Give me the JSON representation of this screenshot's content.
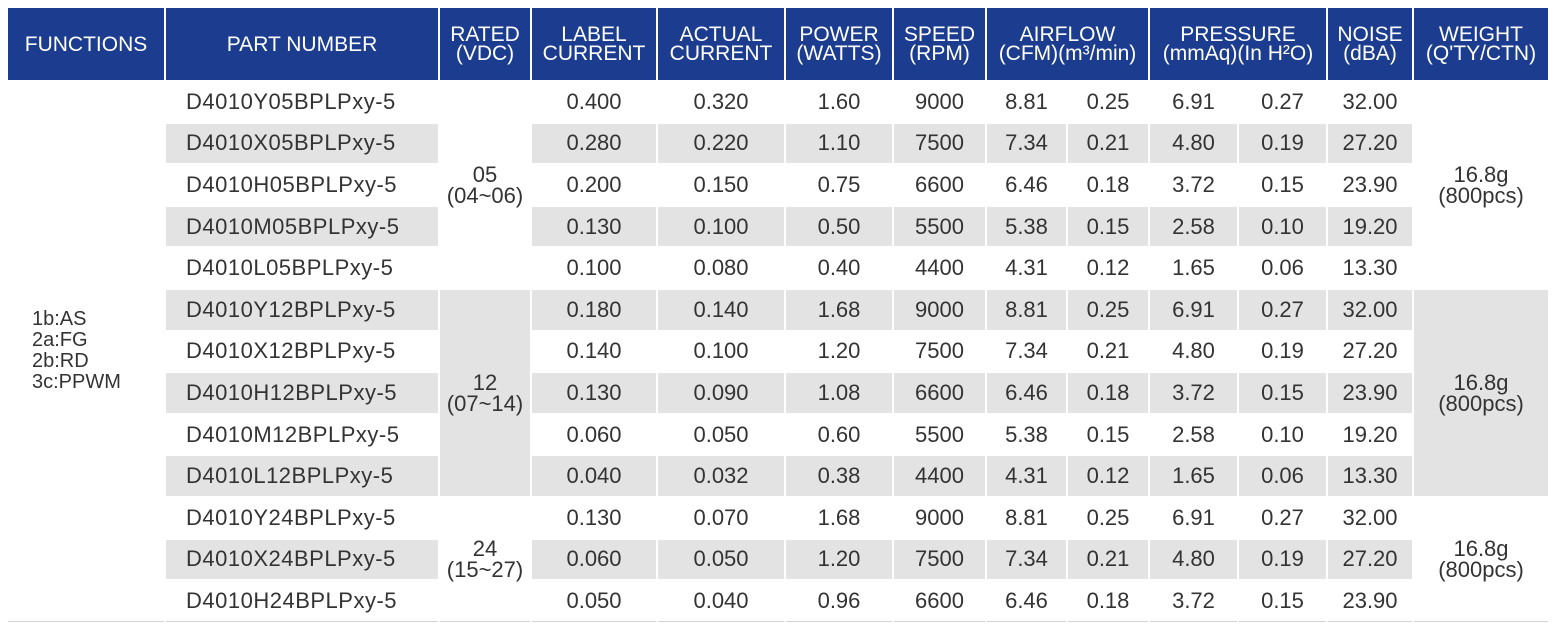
{
  "headers": {
    "functions": "FUNCTIONS",
    "part_number": "PART NUMBER",
    "rated": [
      "RATED",
      "(VDC)"
    ],
    "label_current": [
      "LABEL",
      "CURRENT"
    ],
    "actual_current": [
      "ACTUAL",
      "CURRENT"
    ],
    "power": [
      "POWER",
      "(WATTS)"
    ],
    "speed": [
      "SPEED",
      "(RPM)"
    ],
    "airflow": [
      "AIRFLOW",
      "(CFM)(m³/min)"
    ],
    "pressure": [
      "PRESSURE",
      "(mmAq)(In H²O)"
    ],
    "noise": [
      "NOISE",
      "(dBA)"
    ],
    "weight": [
      "WEIGHT",
      "(Q'TY/CTN)"
    ]
  },
  "functions": [
    "1b:AS",
    "2a:FG",
    "2b:RD",
    "3c:PPWM"
  ],
  "groups": [
    {
      "voltage": "05",
      "range": "(04~06)",
      "weight": "16.8g",
      "qty": "(800pcs)",
      "rows": [
        {
          "part": "D4010Y05BPLPxy-5",
          "label_current": "0.400",
          "actual_current": "0.320",
          "power": "1.60",
          "speed": "9000",
          "cfm": "8.81",
          "m3min": "0.25",
          "mmaq": "6.91",
          "inh2o": "0.27",
          "noise": "32.00"
        },
        {
          "part": "D4010X05BPLPxy-5",
          "label_current": "0.280",
          "actual_current": "0.220",
          "power": "1.10",
          "speed": "7500",
          "cfm": "7.34",
          "m3min": "0.21",
          "mmaq": "4.80",
          "inh2o": "0.19",
          "noise": "27.20"
        },
        {
          "part": "D4010H05BPLPxy-5",
          "label_current": "0.200",
          "actual_current": "0.150",
          "power": "0.75",
          "speed": "6600",
          "cfm": "6.46",
          "m3min": "0.18",
          "mmaq": "3.72",
          "inh2o": "0.15",
          "noise": "23.90"
        },
        {
          "part": "D4010M05BPLPxy-5",
          "label_current": "0.130",
          "actual_current": "0.100",
          "power": "0.50",
          "speed": "5500",
          "cfm": "5.38",
          "m3min": "0.15",
          "mmaq": "2.58",
          "inh2o": "0.10",
          "noise": "19.20"
        },
        {
          "part": "D4010L05BPLPxy-5",
          "label_current": "0.100",
          "actual_current": "0.080",
          "power": "0.40",
          "speed": "4400",
          "cfm": "4.31",
          "m3min": "0.12",
          "mmaq": "1.65",
          "inh2o": "0.06",
          "noise": "13.30"
        }
      ]
    },
    {
      "voltage": "12",
      "range": "(07~14)",
      "weight": "16.8g",
      "qty": "(800pcs)",
      "rows": [
        {
          "part": "D4010Y12BPLPxy-5",
          "label_current": "0.180",
          "actual_current": "0.140",
          "power": "1.68",
          "speed": "9000",
          "cfm": "8.81",
          "m3min": "0.25",
          "mmaq": "6.91",
          "inh2o": "0.27",
          "noise": "32.00"
        },
        {
          "part": "D4010X12BPLPxy-5",
          "label_current": "0.140",
          "actual_current": "0.100",
          "power": "1.20",
          "speed": "7500",
          "cfm": "7.34",
          "m3min": "0.21",
          "mmaq": "4.80",
          "inh2o": "0.19",
          "noise": "27.20"
        },
        {
          "part": "D4010H12BPLPxy-5",
          "label_current": "0.130",
          "actual_current": "0.090",
          "power": "1.08",
          "speed": "6600",
          "cfm": "6.46",
          "m3min": "0.18",
          "mmaq": "3.72",
          "inh2o": "0.15",
          "noise": "23.90"
        },
        {
          "part": "D4010M12BPLPxy-5",
          "label_current": "0.060",
          "actual_current": "0.050",
          "power": "0.60",
          "speed": "5500",
          "cfm": "5.38",
          "m3min": "0.15",
          "mmaq": "2.58",
          "inh2o": "0.10",
          "noise": "19.20"
        },
        {
          "part": "D4010L12BPLPxy-5",
          "label_current": "0.040",
          "actual_current": "0.032",
          "power": "0.38",
          "speed": "4400",
          "cfm": "4.31",
          "m3min": "0.12",
          "mmaq": "1.65",
          "inh2o": "0.06",
          "noise": "13.30"
        }
      ]
    },
    {
      "voltage": "24",
      "range": "(15~27)",
      "weight": "16.8g",
      "qty": "(800pcs)",
      "rows": [
        {
          "part": "D4010Y24BPLPxy-5",
          "label_current": "0.130",
          "actual_current": "0.070",
          "power": "1.68",
          "speed": "9000",
          "cfm": "8.81",
          "m3min": "0.25",
          "mmaq": "6.91",
          "inh2o": "0.27",
          "noise": "32.00"
        },
        {
          "part": "D4010X24BPLPxy-5",
          "label_current": "0.060",
          "actual_current": "0.050",
          "power": "1.20",
          "speed": "7500",
          "cfm": "7.34",
          "m3min": "0.21",
          "mmaq": "4.80",
          "inh2o": "0.19",
          "noise": "27.20"
        },
        {
          "part": "D4010H24BPLPxy-5",
          "label_current": "0.050",
          "actual_current": "0.040",
          "power": "0.96",
          "speed": "6600",
          "cfm": "6.46",
          "m3min": "0.18",
          "mmaq": "3.72",
          "inh2o": "0.15",
          "noise": "23.90"
        }
      ]
    }
  ]
}
